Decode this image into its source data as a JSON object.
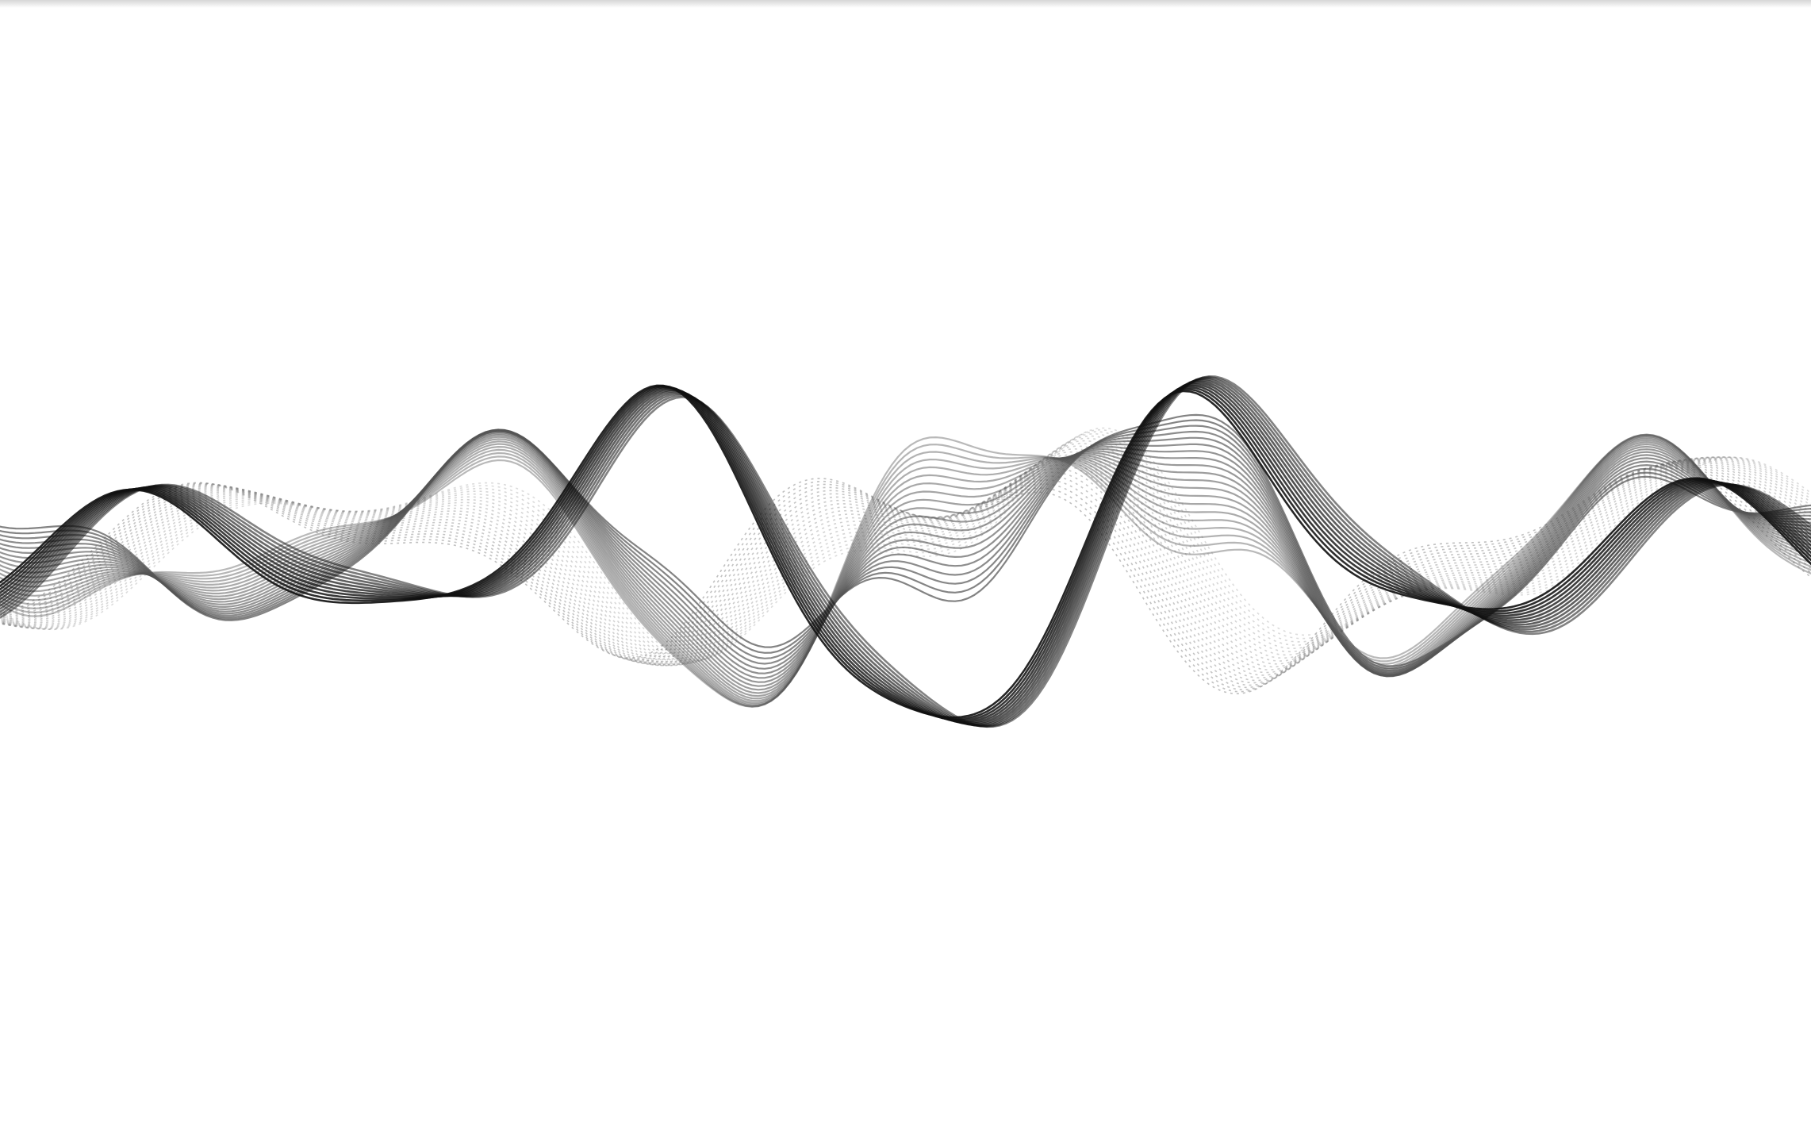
{
  "artwork": {
    "icon": "sound-wave-illustration",
    "background_color": "#ffffff",
    "stroke_colors": {
      "dark": "#111111",
      "mid": "#555555",
      "light": "#8a8a8a"
    }
  }
}
